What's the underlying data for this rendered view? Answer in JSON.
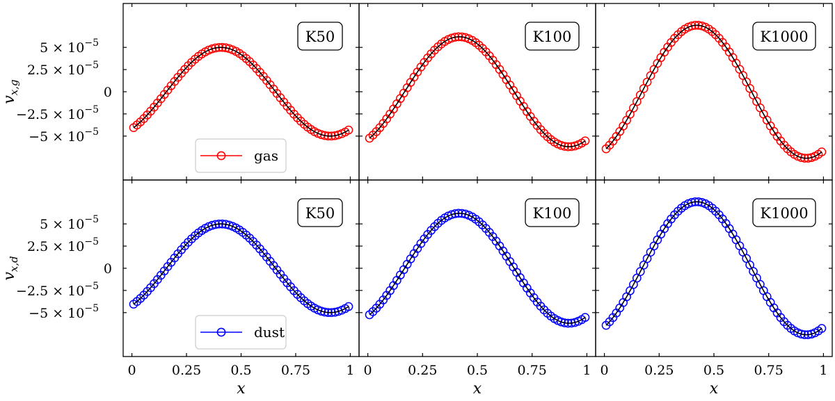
{
  "chart_data": {
    "type": "line",
    "layout": "2x3 grid, shared x and y axes",
    "xlabel": "x",
    "x_ticks": [
      "0",
      "0.25",
      "0.5",
      "0.75",
      "1"
    ],
    "x_tick_values": [
      0,
      0.25,
      0.5,
      0.75,
      1
    ],
    "xlim": [
      -0.04,
      1.04
    ],
    "ylim": [
      -9.95e-05,
      9.95e-05
    ],
    "y_tick_values": [
      5e-05,
      2.5e-05,
      0,
      -2.5e-05,
      -5e-05
    ],
    "y_tick_labels": [
      [
        "5 × 10",
        "−5"
      ],
      [
        "2.5 × 10",
        "−5"
      ],
      [
        "0",
        ""
      ],
      [
        "−2.5 × 10",
        "−5"
      ],
      [
        "−5 × 10",
        "−5"
      ]
    ],
    "row_ylabels": [
      {
        "main": "v",
        "sub": "x,g"
      },
      {
        "main": "v",
        "sub": "x,d"
      }
    ],
    "column_labels": [
      "K50",
      "K100",
      "K1000"
    ],
    "wave_model": "v(x) = A * sin(2*pi*(x - phase)); solid black line = analytic solution, circles = simulation",
    "columns": [
      {
        "label": "K50",
        "amplitude": 5e-05,
        "phase": 0.158
      },
      {
        "label": "K100",
        "amplitude": 6.2e-05,
        "phase": 0.168
      },
      {
        "label": "K1000",
        "amplitude": 7.5e-05,
        "phase": 0.172
      }
    ],
    "rows": [
      {
        "quantity": "gas velocity",
        "legend": "gas",
        "color": "#ff0000",
        "legend_location": "lower center"
      },
      {
        "quantity": "dust velocity",
        "legend": "dust",
        "color": "#0000ff",
        "legend_location": "lower center"
      }
    ],
    "marker_count": 64,
    "marker_x_start": 0.0078,
    "marker_x_step": 0.015625,
    "analytic_line_color": "#000000",
    "grid": false
  }
}
